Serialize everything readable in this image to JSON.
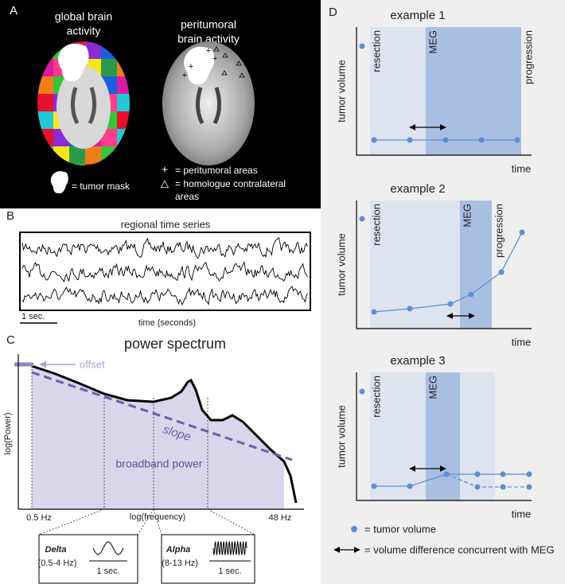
{
  "panel_a": {
    "label": "A",
    "left_title": [
      "global brain",
      "activity"
    ],
    "right_title": [
      "peritumoral",
      "brain activity"
    ],
    "legend": {
      "mask": "= tumor mask",
      "plus_symbol": "+",
      "plus": "= peritumoral areas",
      "triangle_symbol": "△",
      "triangle": [
        "= homologue  contralateral",
        "areas"
      ]
    }
  },
  "panel_b": {
    "label": "B",
    "title": "regional time series",
    "scale": "1 sec.",
    "x_label": "time (seconds)"
  },
  "panel_c": {
    "label": "C",
    "title": "power spectrum",
    "offset": "offset",
    "slope": "slope",
    "broadband": "broadband power",
    "y_label": "log(Power)",
    "x_label": "log(frequency)",
    "x_start": "0.5 Hz",
    "x_end": "48 Hz",
    "insets": [
      {
        "name": "Delta",
        "range": "(0.5-4 Hz)",
        "scale": "1 sec."
      },
      {
        "name": "Alpha",
        "range": "(8-13 Hz)",
        "scale": "1 sec."
      }
    ]
  },
  "panel_d": {
    "label": "D",
    "examples": [
      {
        "title": "example 1",
        "resection": "resection",
        "meg": "MEG",
        "progression": "progression",
        "y_label": "tumor volume",
        "x_label": "time"
      },
      {
        "title": "example 2",
        "resection": "resection",
        "meg": "MEG",
        "progression": "progression",
        "y_label": "tumor volume",
        "x_label": "time"
      },
      {
        "title": "example 3",
        "resection": "resection",
        "meg": "MEG",
        "y_label": "tumor volume",
        "x_label": "time"
      }
    ],
    "legend": {
      "dot": "= tumor volume",
      "arrow": "= volume difference concurrent with MEG"
    }
  }
}
